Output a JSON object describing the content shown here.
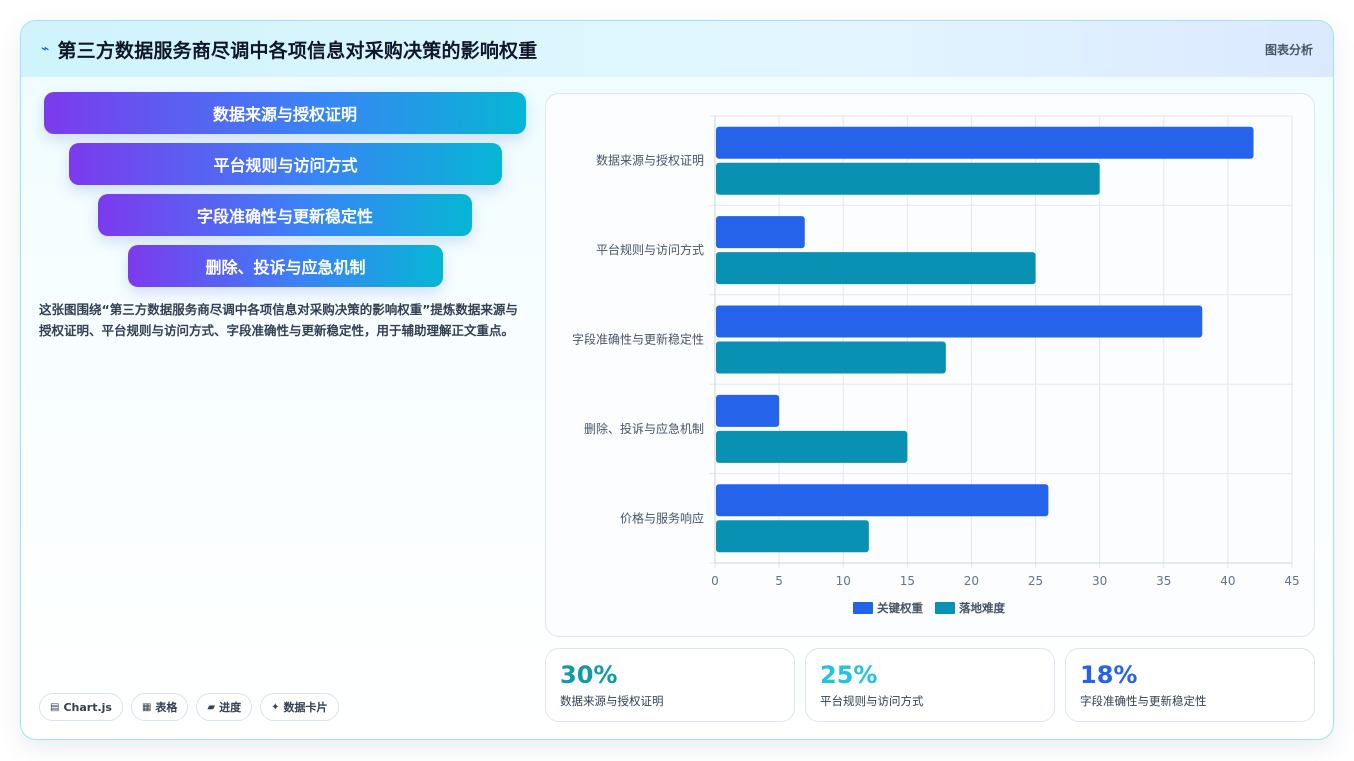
{
  "header": {
    "icon": "chart-icon",
    "title": "第三方数据服务商尽调中各项信息对采购决策的影响权重",
    "tag": "图表分析"
  },
  "pills": [
    {
      "label": "数据来源与授权证明"
    },
    {
      "label": "平台规则与访问方式"
    },
    {
      "label": "字段准确性与更新稳定性"
    },
    {
      "label": "删除、投诉与应急机制"
    }
  ],
  "description": "这张图围绕“第三方数据服务商尽调中各项信息对采购决策的影响权重”提炼数据来源与授权证明、平台规则与访问方式、字段准确性与更新稳定性，用于辅助理解正文重点。",
  "chips": [
    {
      "icon": "▤",
      "label": "Chart.js"
    },
    {
      "icon": "▦",
      "label": "表格"
    },
    {
      "icon": "▰",
      "label": "进度"
    },
    {
      "icon": "✦",
      "label": "数据卡片"
    }
  ],
  "stats": [
    {
      "value": "30%",
      "label": "数据来源与授权证明",
      "color": "#0e9aa7"
    },
    {
      "value": "25%",
      "label": "平台规则与访问方式",
      "color": "#22c3dd"
    },
    {
      "value": "18%",
      "label": "字段准确性与更新稳定性",
      "color": "#2563eb"
    }
  ],
  "chart_data": {
    "type": "bar",
    "orientation": "horizontal",
    "categories": [
      "数据来源与授权证明",
      "平台规则与访问方式",
      "字段准确性与更新稳定性",
      "删除、投诉与应急机制",
      "价格与服务响应"
    ],
    "series": [
      {
        "name": "关键权重",
        "values": [
          42,
          7,
          38,
          5,
          26
        ],
        "color": "#2563eb"
      },
      {
        "name": "落地难度",
        "values": [
          30,
          25,
          18,
          15,
          12
        ],
        "color": "#0891b2"
      }
    ],
    "xlim": [
      0,
      45
    ],
    "xticks": [
      0,
      5,
      10,
      15,
      20,
      25,
      30,
      35,
      40,
      45
    ],
    "grid": true,
    "legend": "bottom"
  }
}
